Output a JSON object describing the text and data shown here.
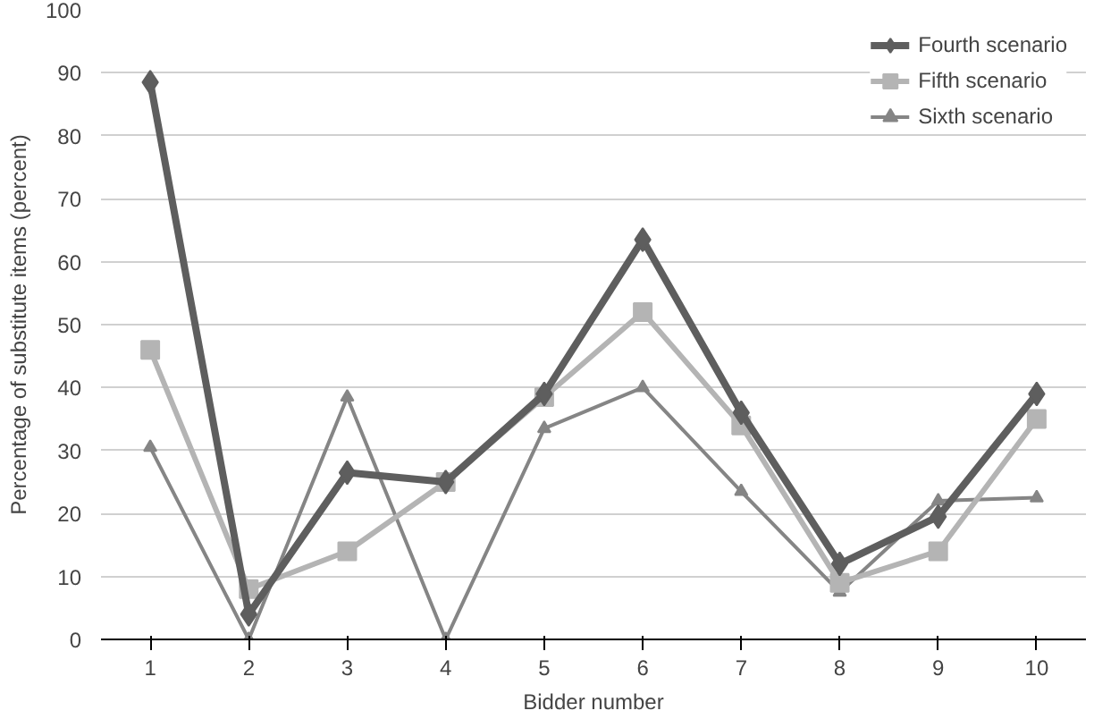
{
  "chart_data": {
    "type": "line",
    "xlabel": "Bidder number",
    "ylabel": "Percentage of substitute items (percent)",
    "categories": [
      "1",
      "2",
      "3",
      "4",
      "5",
      "6",
      "7",
      "8",
      "9",
      "10"
    ],
    "series": [
      {
        "name": "Fourth scenario",
        "color": "#5e5e5e",
        "marker": "diamond",
        "values": [
          88.5,
          4,
          26.5,
          25,
          39,
          63.5,
          36,
          12,
          19.5,
          39
        ]
      },
      {
        "name": "Fifth scenario",
        "color": "#b4b4b4",
        "marker": "square",
        "values": [
          46,
          8,
          14,
          25,
          38.5,
          52,
          34,
          9,
          14,
          35
        ]
      },
      {
        "name": "Sixth scenario",
        "color": "#858585",
        "marker": "triangle",
        "values": [
          30.5,
          0,
          38.5,
          0,
          33.5,
          40,
          23.5,
          7.5,
          22,
          22.5
        ]
      }
    ],
    "ylim": [
      0,
      100
    ],
    "yticks": [
      0,
      10,
      20,
      30,
      40,
      50,
      60,
      70,
      80,
      90,
      100
    ],
    "grid": "y",
    "legend": "top right",
    "line_style": "solid"
  }
}
